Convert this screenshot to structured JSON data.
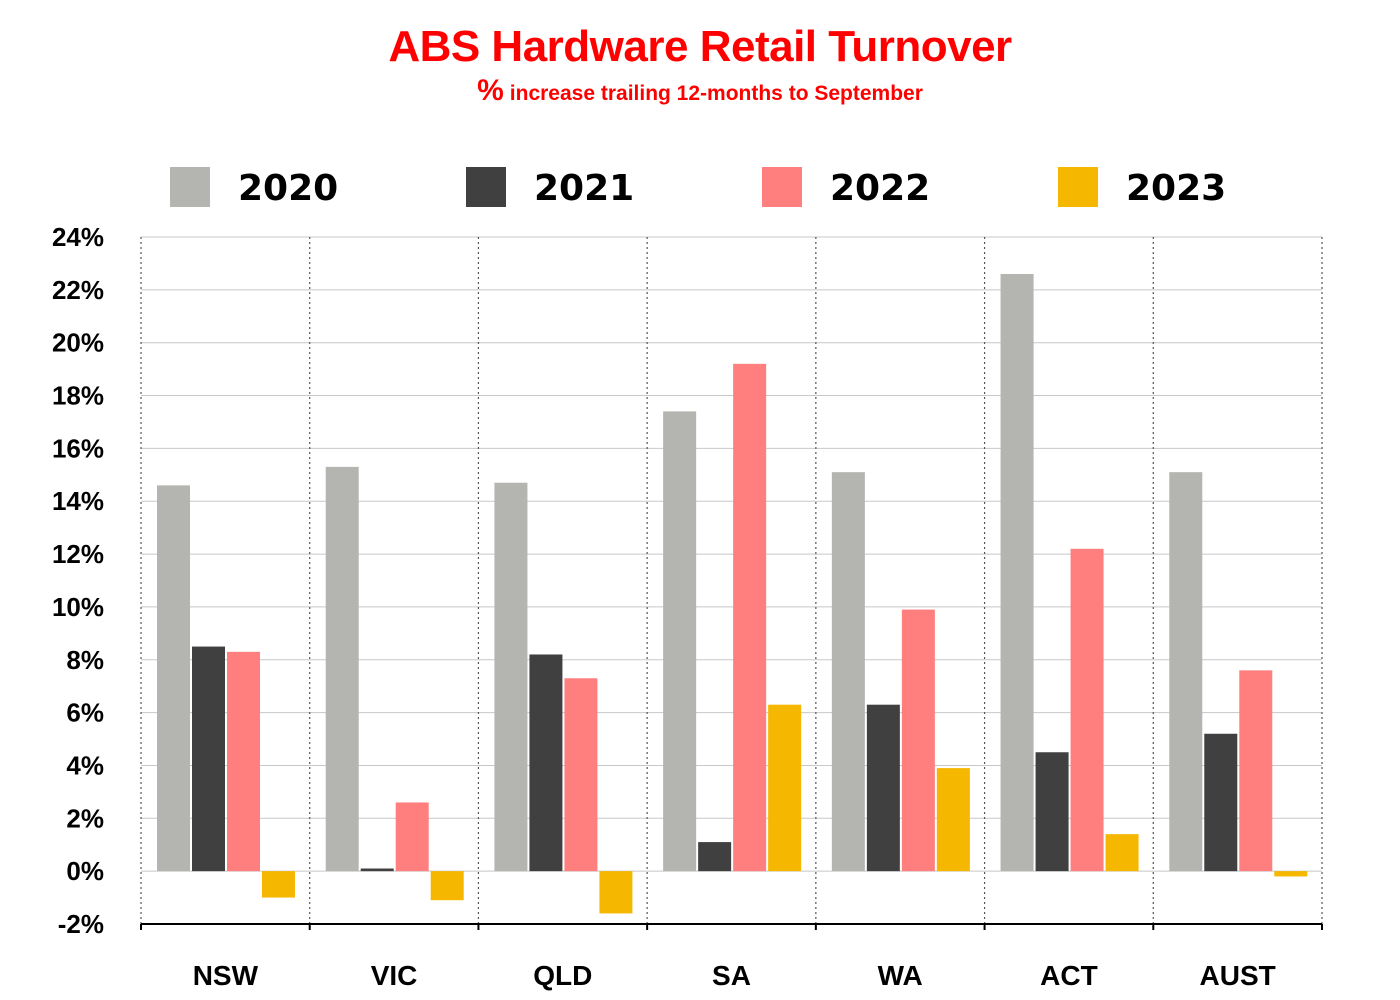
{
  "colors": {
    "title": "#ff0000",
    "series": [
      "#b4b4b0",
      "#404040",
      "#ff7f7f",
      "#f5b700"
    ],
    "grid": "#c8c8c8",
    "axis": "#000000"
  },
  "chart_data": {
    "type": "bar",
    "title": "ABS Hardware Retail Turnover",
    "subtitle_symbol": "%",
    "subtitle": "increase trailing 12-months to September",
    "categories": [
      "NSW",
      "VIC",
      "QLD",
      "SA",
      "WA",
      "ACT",
      "AUST"
    ],
    "series": [
      {
        "name": "2020",
        "values": [
          14.6,
          15.3,
          14.7,
          17.4,
          15.1,
          22.6,
          15.1
        ]
      },
      {
        "name": "2021",
        "values": [
          8.5,
          0.1,
          8.2,
          1.1,
          6.3,
          4.5,
          5.2
        ]
      },
      {
        "name": "2022",
        "values": [
          8.3,
          2.6,
          7.3,
          19.2,
          9.9,
          12.2,
          7.6
        ]
      },
      {
        "name": "2023",
        "values": [
          -1.0,
          -1.1,
          -1.6,
          6.3,
          3.9,
          1.4,
          -0.2
        ]
      }
    ],
    "y_ticks": [
      "24%",
      "22%",
      "20%",
      "18%",
      "16%",
      "14%",
      "12%",
      "10%",
      "8%",
      "6%",
      "4%",
      "2%",
      "0%",
      "-2%"
    ],
    "ylim": [
      -2,
      24
    ],
    "grid": true,
    "legend_position": "top"
  }
}
